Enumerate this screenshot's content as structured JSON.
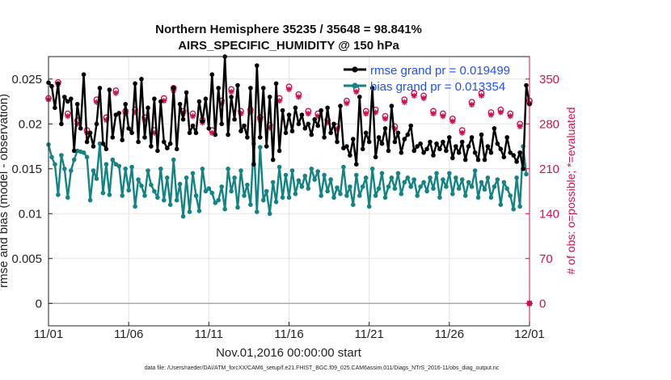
{
  "chart_data": {
    "type": "line",
    "title": "Northern Hemisphere 35235 / 35648 = 98.841%",
    "subtitle": "AIRS_SPECIFIC_HUMIDITY @ 150 hPa",
    "xlabel": "Nov.01,2016 00:00:00 start",
    "ylabel": "rmse and bias (model - observation)",
    "ylabel_right": "# of obs: o=possible; *=evaluated",
    "footnote": "data file: /Users/raeder/DAI/ATM_forcXX/CAM6_setup/f.e21.FHIST_BGC.f09_025.CAM6assim.011/Diags_NTrS_2016-11/obs_diag_output.nc",
    "x_ticks": [
      "11/01",
      "11/06",
      "11/11",
      "11/16",
      "11/21",
      "11/26",
      "12/01"
    ],
    "xlim": [
      0,
      30
    ],
    "ylim": [
      -0.0025,
      0.0275
    ],
    "y_ticks": [
      "0",
      "0.005",
      "0.01",
      "0.015",
      "0.02",
      "0.025"
    ],
    "y2lim": [
      -35,
      385
    ],
    "y2_ticks": [
      "0",
      "70",
      "140",
      "210",
      "280",
      "350"
    ],
    "grid": true,
    "legend_position": "top-right",
    "series": [
      {
        "name": "rmse grand pr = 0.019499",
        "color": "#000000",
        "axis": "left",
        "values": [
          0.0246,
          0.0242,
          0.0218,
          0.0245,
          0.02,
          0.023,
          0.0225,
          0.0228,
          0.017,
          0.0222,
          0.0195,
          0.0255,
          0.018,
          0.019,
          0.0175,
          0.02,
          0.024,
          0.0178,
          0.0172,
          0.0238,
          0.0185,
          0.021,
          0.0212,
          0.0182,
          0.0222,
          0.0195,
          0.019,
          0.0245,
          0.018,
          0.025,
          0.0185,
          0.0218,
          0.0175,
          0.0228,
          0.017,
          0.0225,
          0.018,
          0.0173,
          0.0178,
          0.024,
          0.0172,
          0.0222,
          0.0205,
          0.0235,
          0.019,
          0.0198,
          0.019,
          0.0225,
          0.0203,
          0.0228,
          0.0195,
          0.0255,
          0.0188,
          0.024,
          0.02,
          0.0275,
          0.0188,
          0.023,
          0.0205,
          0.0243,
          0.0192,
          0.0198,
          0.0185,
          0.024,
          0.0155,
          0.0265,
          0.0185,
          0.024,
          0.0175,
          0.023,
          0.016,
          0.0245,
          0.017,
          0.0215,
          0.019,
          0.021,
          0.0192,
          0.0218,
          0.02,
          0.021,
          0.0195,
          0.02,
          0.0188,
          0.0205,
          0.0198,
          0.0215,
          0.0185,
          0.0218,
          0.019,
          0.02,
          0.018,
          0.022,
          0.0173,
          0.0175,
          0.0165,
          0.0183,
          0.0155,
          0.023,
          0.0172,
          0.019,
          0.018,
          0.024,
          0.0163,
          0.0185,
          0.0178,
          0.0195,
          0.017,
          0.022,
          0.018,
          0.019,
          0.0168,
          0.0183,
          0.0188,
          0.0198,
          0.017,
          0.0175,
          0.0178,
          0.0168,
          0.0172,
          0.018,
          0.0165,
          0.0178,
          0.0172,
          0.018,
          0.017,
          0.0185,
          0.0162,
          0.0175,
          0.0168,
          0.018,
          0.016,
          0.0175,
          0.0185,
          0.0168,
          0.016,
          0.0188,
          0.016,
          0.0175,
          0.0168,
          0.0195,
          0.0178,
          0.0172,
          0.0163,
          0.0185,
          0.0168,
          0.0165,
          0.0158,
          0.0168,
          0.015,
          0.0243,
          0.0222
        ]
      },
      {
        "name": "bias grand pr = 0.013354",
        "color": "#138383",
        "axis": "left",
        "values": [
          0.0177,
          0.0163,
          0.0155,
          0.0121,
          0.0165,
          0.015,
          0.0118,
          0.0148,
          0.016,
          0.017,
          0.0169,
          0.0168,
          0.0163,
          0.0115,
          0.0148,
          0.0139,
          0.0178,
          0.0123,
          0.0155,
          0.0121,
          0.016,
          0.0155,
          0.0153,
          0.012,
          0.015,
          0.0126,
          0.0152,
          0.0108,
          0.0138,
          0.0131,
          0.012,
          0.0148,
          0.0132,
          0.0125,
          0.0118,
          0.015,
          0.0115,
          0.014,
          0.011,
          0.016,
          0.0115,
          0.0133,
          0.0097,
          0.014,
          0.0102,
          0.0145,
          0.012,
          0.0103,
          0.015,
          0.0125,
          0.0128,
          0.0123,
          0.0112,
          0.0115,
          0.013,
          0.0105,
          0.015,
          0.0125,
          0.014,
          0.0107,
          0.0148,
          0.012,
          0.0132,
          0.011,
          0.0178,
          0.0102,
          0.0174,
          0.0115,
          0.0125,
          0.01,
          0.0135,
          0.0113,
          0.0152,
          0.0118,
          0.0143,
          0.0118,
          0.0148,
          0.0122,
          0.0137,
          0.013,
          0.0142,
          0.0128,
          0.015,
          0.0138,
          0.0147,
          0.012,
          0.0143,
          0.0125,
          0.0138,
          0.0118,
          0.0129,
          0.0122,
          0.0152,
          0.012,
          0.013,
          0.011,
          0.0143,
          0.012,
          0.013,
          0.014,
          0.0108,
          0.015,
          0.012,
          0.0128,
          0.0145,
          0.0118,
          0.013,
          0.014,
          0.0128,
          0.0145,
          0.0122,
          0.0135,
          0.014,
          0.013,
          0.0138,
          0.012,
          0.013,
          0.0135,
          0.0125,
          0.014,
          0.0128,
          0.0145,
          0.0118,
          0.0138,
          0.013,
          0.0145,
          0.0122,
          0.014,
          0.0128,
          0.0138,
          0.012,
          0.0135,
          0.013,
          0.0148,
          0.0118,
          0.0135,
          0.0127,
          0.014,
          0.0118,
          0.013,
          0.0138,
          0.011,
          0.0135,
          0.0128,
          0.012,
          0.0105,
          0.014,
          0.0108,
          0.0175,
          0.0144
        ]
      },
      {
        "name": "# of obs possible",
        "marker": "o",
        "color": "#cc1155",
        "axis": "right",
        "values": [
          320,
          290,
          272,
          345,
          305,
          340,
          296,
          330,
          310,
          285,
          338,
          300,
          270,
          340,
          282,
          318,
          300,
          336,
          290,
          310,
          270,
          332,
          296,
          320,
          300,
          286,
          340,
          302,
          270,
          326,
          290,
          318,
          300,
          270,
          338,
          296,
          320,
          302,
          280,
          336,
          290,
          318,
          300,
          270,
          330,
          296,
          320,
          300,
          286,
          338,
          302,
          270,
          326,
          290,
          316,
          300,
          272,
          334,
          296,
          318,
          300,
          284,
          336,
          302,
          270,
          328,
          290,
          316,
          300,
          278,
          334,
          296,
          320,
          300,
          286,
          338,
          304,
          270,
          326,
          290,
          318,
          300,
          274,
          336,
          296,
          320,
          300,
          286,
          330,
          304,
          276,
          324,
          290,
          316,
          300,
          272,
          334,
          298,
          318,
          300,
          286,
          330,
          302,
          270,
          328,
          292,
          316,
          300,
          276,
          330,
          296,
          318,
          300,
          284,
          328,
          300,
          272,
          324,
          292,
          312,
          300,
          278,
          330,
          296,
          316,
          300,
          288,
          332,
          302,
          270,
          326,
          294,
          314,
          300,
          276,
          328,
          296,
          316,
          298,
          286,
          330,
          302,
          270,
          324,
          296,
          312,
          300,
          280,
          326,
          296,
          316
        ]
      },
      {
        "name": "# of obs evaluated",
        "marker": "*",
        "color": "#cc1155",
        "axis": "right",
        "values": [
          318,
          286,
          268,
          342,
          300,
          336,
          292,
          326,
          306,
          280,
          334,
          296,
          266,
          336,
          278,
          314,
          296,
          332,
          286,
          306,
          266,
          328,
          292,
          316,
          296,
          282,
          336,
          298,
          266,
          322,
          286,
          314,
          296,
          266,
          334,
          292,
          316,
          298,
          276,
          332,
          286,
          314,
          296,
          266,
          326,
          292,
          316,
          296,
          282,
          334,
          298,
          266,
          322,
          286,
          312,
          296,
          268,
          330,
          292,
          314,
          296,
          280,
          332,
          298,
          266,
          324,
          286,
          312,
          296,
          274,
          330,
          292,
          316,
          296,
          282,
          334,
          300,
          266,
          322,
          286,
          314,
          296,
          270,
          332,
          292,
          316,
          296,
          282,
          326,
          300,
          272,
          320,
          286,
          312,
          296,
          268,
          330,
          294,
          314,
          296,
          282,
          326,
          298,
          266,
          324,
          288,
          312,
          296,
          272,
          326,
          292,
          314,
          296,
          280,
          324,
          296,
          268,
          320,
          288,
          308,
          296,
          274,
          326,
          292,
          312,
          296,
          284,
          328,
          298,
          266,
          322,
          290,
          310,
          296,
          272,
          324,
          292,
          312,
          294,
          282,
          326,
          298,
          266,
          320,
          292,
          308,
          296,
          276,
          322,
          292,
          312
        ]
      }
    ],
    "end_marker": {
      "x": 30,
      "y2": 0,
      "color": "#cc1155"
    }
  }
}
